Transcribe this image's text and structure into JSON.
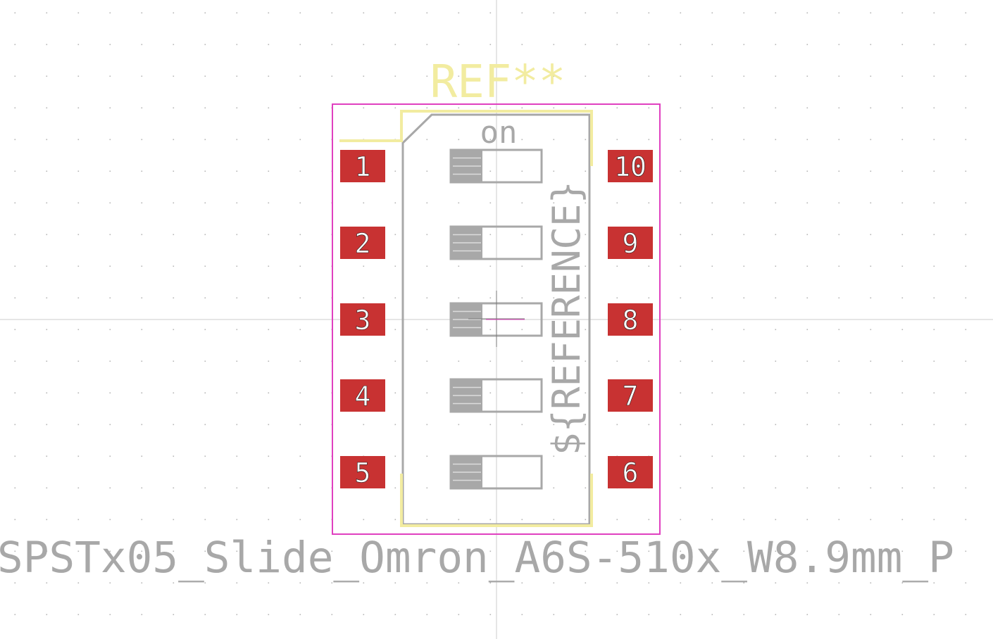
{
  "footprint": {
    "reference": "REF**",
    "reference_field": "${REFERENCE}",
    "value": "SPSTx05_Slide_Omron_A6S-510x_W8.9mm_P",
    "switch_marking": "on"
  },
  "pads": {
    "left": [
      {
        "number": "1"
      },
      {
        "number": "2"
      },
      {
        "number": "3"
      },
      {
        "number": "4"
      },
      {
        "number": "5"
      }
    ],
    "right": [
      {
        "number": "10"
      },
      {
        "number": "9"
      },
      {
        "number": "8"
      },
      {
        "number": "7"
      },
      {
        "number": "6"
      }
    ]
  },
  "switch_count": 5,
  "colors": {
    "background": "#ffffff",
    "grid_dot": "#b4b4b4",
    "axis_line": "#c8c8c8",
    "courtyard": "#e040c0",
    "silkscreen": "#f2eca0",
    "fabrication": "#a8a8a8",
    "pad_fill": "#c83232",
    "pad_text": "#ffffff"
  }
}
